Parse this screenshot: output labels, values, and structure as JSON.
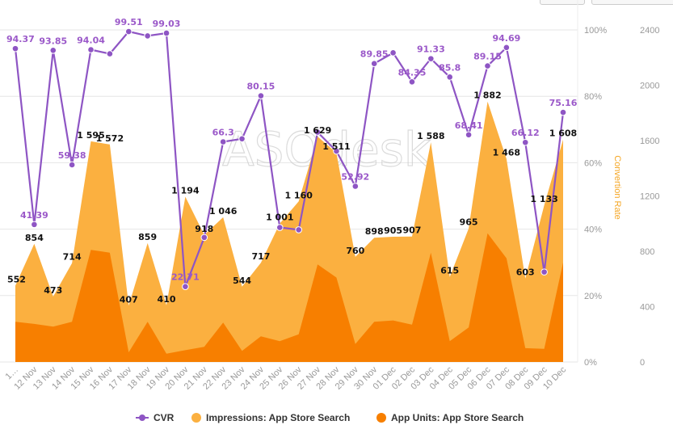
{
  "chart_data": {
    "type": "area",
    "x_categories": [
      "1…",
      "12 Nov",
      "13 Nov",
      "14 Nov",
      "15 Nov",
      "16 Nov",
      "17 Nov",
      "18 Nov",
      "19 Nov",
      "20 Nov",
      "21 Nov",
      "22 Nov",
      "23 Nov",
      "24 Nov",
      "25 Nov",
      "26 Nov",
      "27 Nov",
      "28 Nov",
      "29 Nov",
      "30 Nov",
      "01 Dec",
      "02 Dec",
      "03 Dec",
      "04 Dec",
      "05 Dec",
      "06 Dec",
      "07 Dec",
      "08 Dec",
      "09 Dec",
      "10 Dec"
    ],
    "y_left": {
      "ticks": [
        "0%",
        "20%",
        "40%",
        "60%",
        "80%",
        "100%"
      ],
      "min": 0,
      "max": 100
    },
    "y_right": {
      "ticks": [
        "0",
        "400",
        "800",
        "1200",
        "1600",
        "2000",
        "2400"
      ],
      "min": 0,
      "max": 2400,
      "label": "Convertion Rate"
    },
    "watermark": "ASOdesk",
    "series": [
      {
        "name": "Impressions: App Store Search",
        "color": "#fbb040",
        "axis": "right",
        "values": [
          552,
          854,
          473,
          714,
          1595,
          1572,
          407,
          859,
          410,
          1194,
          918,
          1046,
          544,
          717,
          1001,
          1160,
          1629,
          1511,
          760,
          898,
          905,
          907,
          1588,
          615,
          965,
          1882,
          1468,
          603,
          1133,
          1608
        ],
        "labels": [
          "552",
          "854",
          "473",
          "714",
          "1 595",
          "1 572",
          "407",
          "859",
          "410",
          "1 194",
          "918",
          "1 046",
          "544",
          "717",
          "1 001",
          "1 160",
          "1 629",
          "1 511",
          "760",
          "898",
          "905",
          "907",
          "1 588",
          "615",
          "965",
          "1 882",
          "1 468",
          "603",
          "1 133",
          "1 608"
        ]
      },
      {
        "name": "App Units: App Store Search",
        "color": "#f77f00",
        "axis": "right",
        "values": [
          290,
          275,
          255,
          290,
          810,
          790,
          70,
          290,
          60,
          85,
          110,
          285,
          80,
          185,
          150,
          200,
          705,
          610,
          130,
          290,
          300,
          270,
          790,
          150,
          250,
          930,
          750,
          100,
          95,
          720
        ]
      },
      {
        "name": "CVR",
        "color": "#8e55c4",
        "axis": "left",
        "values": [
          94.37,
          41.39,
          93.85,
          59.38,
          94.04,
          92.8,
          99.51,
          98.2,
          99.03,
          22.71,
          37.5,
          66.3,
          67.2,
          80.15,
          40.5,
          39.8,
          69.2,
          63.5,
          52.92,
          89.85,
          93.1,
          84.35,
          91.33,
          85.8,
          68.41,
          89.15,
          94.69,
          66.12,
          27.1,
          75.16
        ],
        "labels": [
          "94.37",
          "41.39",
          "93.85",
          "59.38",
          "94.04",
          "",
          "99.51",
          "",
          "99.03",
          "22.71",
          "",
          "66.3",
          "",
          "80.15",
          "",
          "",
          "",
          "",
          "52.92",
          "89.85",
          "",
          "84.35",
          "91.33",
          "85.8",
          "68.41",
          "89.15",
          "94.69",
          "66.12",
          "",
          "75.16"
        ]
      }
    ],
    "legend": {
      "position": "bottom-center",
      "items": [
        "CVR",
        "Impressions: App Store Search",
        "App Units: App Store Search"
      ]
    }
  }
}
